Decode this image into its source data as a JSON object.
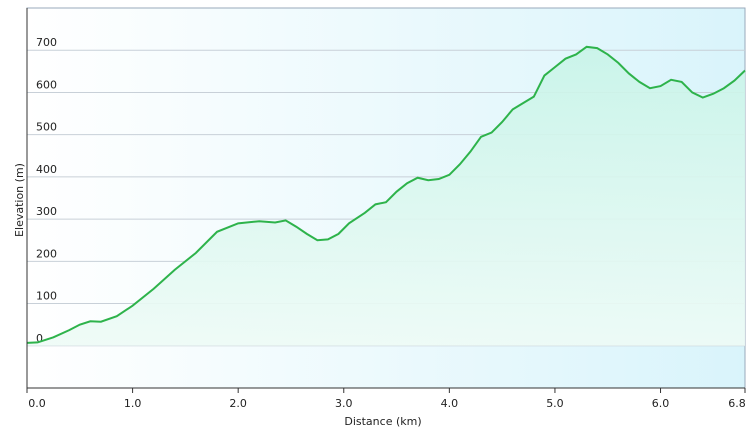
{
  "chart_data": {
    "type": "area",
    "x_label": "Distance  (km)",
    "y_label": "Elevation (m)",
    "x": [
      0,
      0.1,
      0.25,
      0.4,
      0.5,
      0.6,
      0.7,
      0.85,
      1.0,
      1.2,
      1.4,
      1.6,
      1.8,
      2.0,
      2.2,
      2.35,
      2.45,
      2.55,
      2.65,
      2.75,
      2.85,
      2.95,
      3.05,
      3.2,
      3.3,
      3.4,
      3.5,
      3.6,
      3.7,
      3.8,
      3.9,
      4.0,
      4.1,
      4.2,
      4.3,
      4.4,
      4.5,
      4.6,
      4.7,
      4.8,
      4.9,
      5.0,
      5.1,
      5.2,
      5.3,
      5.4,
      5.5,
      5.6,
      5.7,
      5.8,
      5.9,
      6.0,
      6.1,
      6.2,
      6.3,
      6.4,
      6.5,
      6.6,
      6.7,
      6.8
    ],
    "values": [
      7,
      8,
      20,
      37,
      50,
      58,
      57,
      70,
      95,
      135,
      180,
      220,
      270,
      290,
      295,
      292,
      297,
      282,
      265,
      250,
      252,
      265,
      290,
      315,
      335,
      340,
      365,
      385,
      398,
      392,
      395,
      405,
      430,
      460,
      495,
      505,
      530,
      560,
      575,
      590,
      640,
      660,
      680,
      690,
      708,
      705,
      690,
      670,
      645,
      625,
      610,
      615,
      630,
      625,
      600,
      588,
      597,
      610,
      628,
      652
    ],
    "color": "#2eb34b",
    "xlim": [
      0,
      6.8
    ],
    "xticks": [
      {
        "value": 0,
        "label": "0.0"
      },
      {
        "value": 1,
        "label": "1.0"
      },
      {
        "value": 2,
        "label": "2.0"
      },
      {
        "value": 3,
        "label": "3.0"
      },
      {
        "value": 4,
        "label": "4.0"
      },
      {
        "value": 5,
        "label": "5.0"
      },
      {
        "value": 6,
        "label": "6.0"
      },
      6.8
    ],
    "ylim": [
      -100,
      800
    ],
    "yticks": [
      0,
      100,
      200,
      300,
      400,
      500,
      600,
      700
    ],
    "grid": true
  }
}
